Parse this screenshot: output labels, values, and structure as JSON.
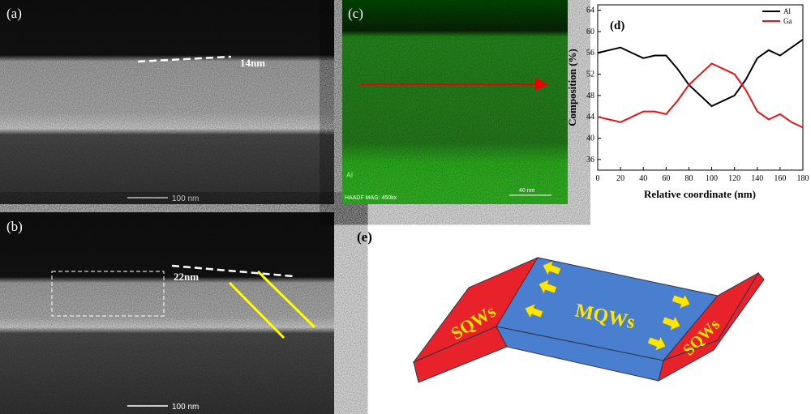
{
  "panels": {
    "a": {
      "label": "(a)",
      "thickness": "14nm",
      "scale": "100 nm"
    },
    "b": {
      "label": "(b)",
      "thickness": "22nm",
      "scale": "100 nm"
    },
    "c": {
      "label": "(c)",
      "element": "Al",
      "info": "HAADF  MAG: 450kx",
      "scale": "40 nm"
    },
    "e": {
      "label": "(e)",
      "left": "SQWs",
      "center": "MQWs",
      "right": "SQWs"
    }
  },
  "chart_data": {
    "type": "line",
    "title": "(d)",
    "x_label": "Relative coordinate (nm)",
    "y_label": "Composition (%)",
    "x": [
      0,
      10,
      20,
      30,
      40,
      50,
      60,
      70,
      80,
      90,
      100,
      110,
      120,
      130,
      140,
      150,
      160,
      170,
      180
    ],
    "series": [
      {
        "name": "Al",
        "color": "#000000",
        "values": [
          56,
          56.5,
          57,
          56,
          55,
          55.5,
          55.5,
          53,
          50,
          48,
          46,
          47,
          48,
          51,
          55,
          56.5,
          55.5,
          57,
          58.5
        ]
      },
      {
        "name": "Ga",
        "color": "#e8141b",
        "values": [
          44,
          43.5,
          43,
          44,
          45,
          45,
          44.5,
          47,
          50,
          52,
          54,
          53,
          52,
          49,
          45,
          43.5,
          44.5,
          43,
          42
        ]
      }
    ],
    "xlim": [
      0,
      180
    ],
    "ylim": [
      34,
      65
    ],
    "xticks": [
      0,
      20,
      40,
      60,
      80,
      100,
      120,
      140,
      160,
      180
    ],
    "yticks": [
      36,
      40,
      44,
      48,
      52,
      56,
      60,
      64
    ],
    "legend": "upper right"
  }
}
